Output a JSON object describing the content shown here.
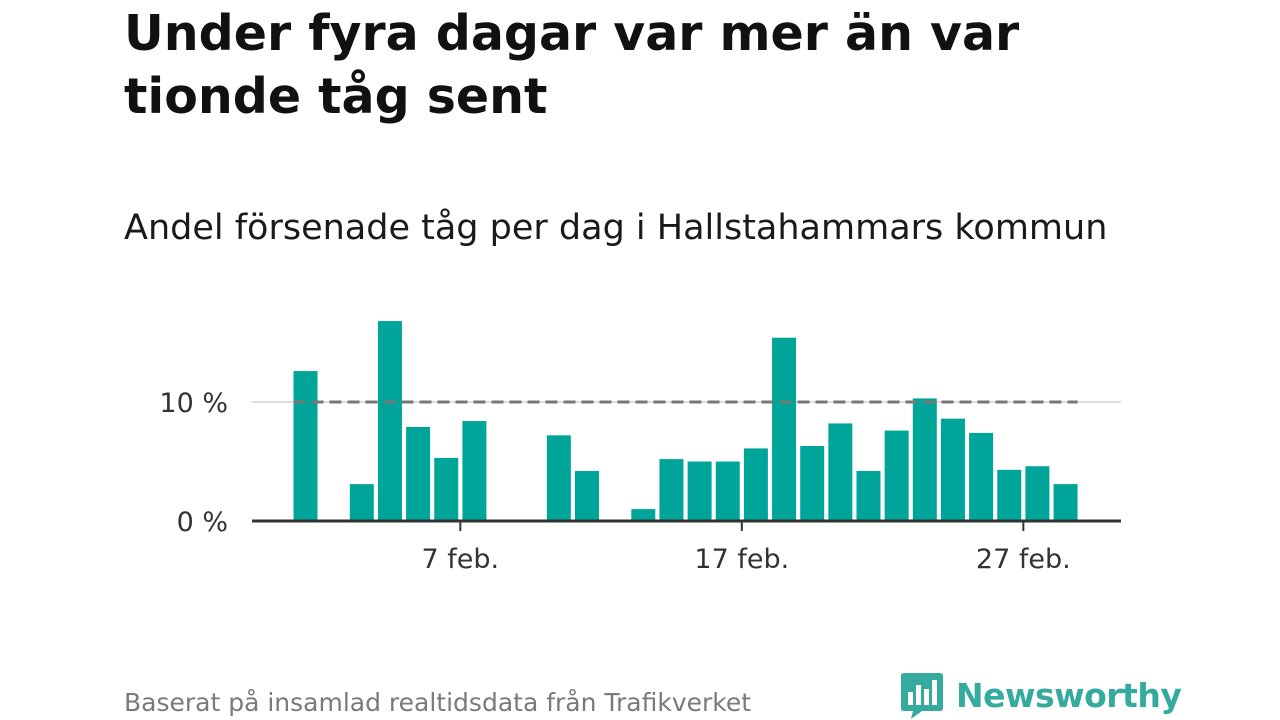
{
  "title": "Under fyra dagar var mer än var tionde tåg sent",
  "subtitle": "Andel försenade tåg per dag i Hallstahammars kommun",
  "source": "Baserat på insamlad realtidsdata från Trafikverket",
  "brand": {
    "name": "Newsworthy",
    "icon": "newsworthy-logo-icon",
    "color": "#35aa9e"
  },
  "colors": {
    "bar": "#00a59a",
    "reference": "#777777",
    "axis": "#333333",
    "grid": "#dddddd"
  },
  "chart_data": {
    "type": "bar",
    "x": [
      1,
      2,
      3,
      4,
      5,
      6,
      7,
      8,
      9,
      10,
      11,
      12,
      13,
      14,
      15,
      16,
      17,
      18,
      19,
      20,
      21,
      22,
      23,
      24,
      25,
      26,
      27,
      28,
      29
    ],
    "values": [
      12.6,
      0,
      3.1,
      16.8,
      7.9,
      5.3,
      8.4,
      0,
      0,
      7.2,
      4.2,
      0,
      1.0,
      5.2,
      5.0,
      5.0,
      6.1,
      15.4,
      6.3,
      8.2,
      4.2,
      7.6,
      10.3,
      8.6,
      7.4,
      4.3,
      4.6,
      3.1,
      0
    ],
    "unit": "%",
    "reference_line": 10,
    "ylim": [
      0,
      17
    ],
    "yticks": [
      0,
      10
    ],
    "ytick_labels": [
      "0 %",
      "10 %"
    ],
    "xticks": [
      7,
      17,
      27
    ],
    "xtick_labels": [
      "7 feb.",
      "17 feb.",
      "27 feb."
    ],
    "grid": "horizontal"
  }
}
